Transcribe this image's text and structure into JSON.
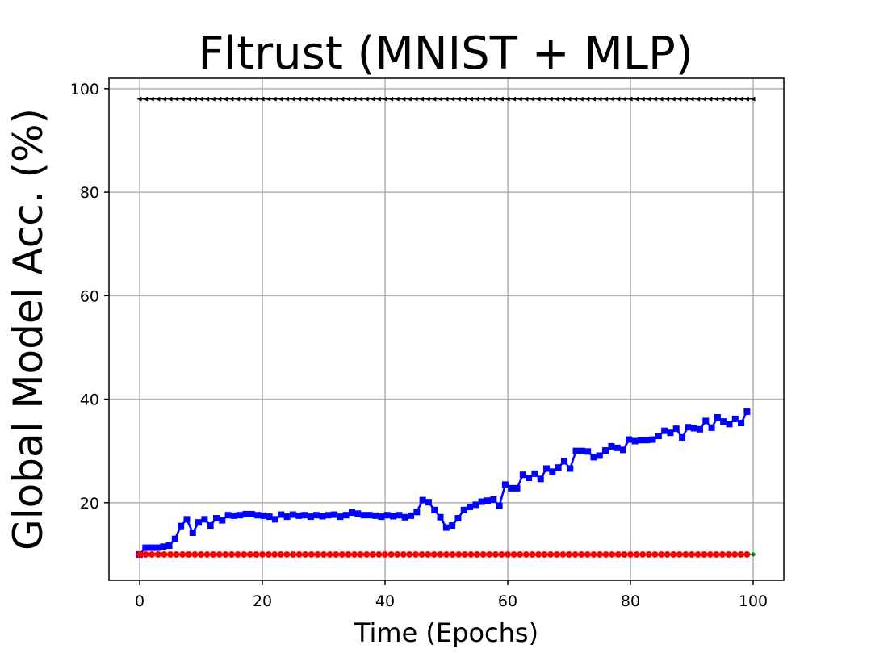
{
  "chart_data": {
    "type": "line",
    "title": "Fltrust (MNIST + MLP)",
    "xlabel": "Time (Epochs)",
    "ylabel": "Global Model Acc. (%)",
    "xlim": [
      -5,
      105
    ],
    "ylim": [
      5,
      102
    ],
    "xticks": [
      0,
      20,
      40,
      60,
      80,
      100
    ],
    "yticks": [
      20,
      40,
      60,
      80,
      100
    ],
    "grid": true,
    "legend": "none",
    "series": [
      {
        "color": "#000000",
        "marker": "triangle-left",
        "x_start": 0,
        "x_end": 100,
        "values": [
          98,
          98,
          98,
          98,
          98,
          98,
          98,
          98,
          98,
          98,
          98,
          98,
          98,
          98,
          98,
          98,
          98,
          98,
          98,
          98,
          98,
          98,
          98,
          98,
          98,
          98,
          98,
          98,
          98,
          98,
          98,
          98,
          98,
          98,
          98,
          98,
          98,
          98,
          98,
          98,
          98,
          98,
          98,
          98,
          98,
          98,
          98,
          98,
          98,
          98,
          98,
          98,
          98,
          98,
          98,
          98,
          98,
          98,
          98,
          98,
          98,
          98,
          98,
          98,
          98,
          98,
          98,
          98,
          98,
          98,
          98,
          98,
          98,
          98,
          98,
          98,
          98,
          98,
          98,
          98,
          98,
          98,
          98,
          98,
          98,
          98,
          98,
          98,
          98,
          98,
          98,
          98,
          98,
          98,
          98,
          98,
          98,
          98,
          98,
          98,
          98
        ]
      },
      {
        "color": "#0000ff",
        "marker": "square",
        "x_start": 0,
        "x_end": 99,
        "values": [
          10,
          11.3,
          11.3,
          11.3,
          11.5,
          11.7,
          13,
          15.5,
          16.8,
          14.2,
          16.2,
          16.8,
          15.6,
          17,
          16.6,
          17.6,
          17.5,
          17.6,
          17.8,
          17.8,
          17.6,
          17.5,
          17.3,
          16.8,
          17.7,
          17.3,
          17.7,
          17.5,
          17.6,
          17.3,
          17.6,
          17.4,
          17.6,
          17.7,
          17.3,
          17.6,
          18.1,
          17.9,
          17.6,
          17.6,
          17.5,
          17.3,
          17.6,
          17.4,
          17.6,
          17.2,
          17.5,
          18.2,
          20.5,
          20.1,
          18.6,
          17.2,
          15.2,
          15.6,
          17,
          18.6,
          19.2,
          19.6,
          20.2,
          20.4,
          20.6,
          19.4,
          23.5,
          22.8,
          22.8,
          25.4,
          24.8,
          25.6,
          24.6,
          26.6,
          26,
          26.8,
          28,
          26.6,
          30,
          30,
          29.9,
          28.8,
          29.1,
          30.1,
          30.9,
          30.6,
          30.2,
          32.2,
          31.9,
          32.1,
          32.1,
          32.2,
          32.9,
          33.9,
          33.5,
          34.3,
          32.6,
          34.6,
          34.4,
          34.2,
          35.8,
          34.5,
          36.5,
          35.7,
          35.2,
          36.2,
          35.4,
          37.6
        ]
      },
      {
        "color": "#008000",
        "marker": "dot",
        "x_start": 0,
        "x_end": 100,
        "values": [
          10,
          10,
          10,
          10,
          10,
          10,
          10,
          10,
          10,
          10,
          10,
          10,
          10,
          10,
          10,
          10,
          10,
          10,
          10,
          10,
          10,
          10,
          10,
          10,
          10,
          10,
          10,
          10,
          10,
          10,
          10,
          10,
          10,
          10,
          10,
          10,
          10,
          10,
          10,
          10,
          10,
          10,
          10,
          10,
          10,
          10,
          10,
          10,
          10,
          10,
          10,
          10,
          10,
          10,
          10,
          10,
          10,
          10,
          10,
          10,
          10,
          10,
          10,
          10,
          10,
          10,
          10,
          10,
          10,
          10,
          10,
          10,
          10,
          10,
          10,
          10,
          10,
          10,
          10,
          10,
          10,
          10,
          10,
          10,
          10,
          10,
          10,
          10,
          10,
          10,
          10,
          10,
          10,
          10,
          10,
          10,
          10,
          10,
          10,
          10,
          10
        ]
      },
      {
        "color": "#ff0000",
        "marker": "circle",
        "x_start": 0,
        "x_end": 99,
        "values": [
          10,
          10,
          10,
          10,
          10,
          10,
          10,
          10,
          10,
          10,
          10,
          10,
          10,
          10,
          10,
          10,
          10,
          10,
          10,
          10,
          10,
          10,
          10,
          10,
          10,
          10,
          10,
          10,
          10,
          10,
          10,
          10,
          10,
          10,
          10,
          10,
          10,
          10,
          10,
          10,
          10,
          10,
          10,
          10,
          10,
          10,
          10,
          10,
          10,
          10,
          10,
          10,
          10,
          10,
          10,
          10,
          10,
          10,
          10,
          10,
          10,
          10,
          10,
          10,
          10,
          10,
          10,
          10,
          10,
          10,
          10,
          10,
          10,
          10,
          10,
          10,
          10,
          10,
          10,
          10,
          10,
          10,
          10,
          10,
          10,
          10,
          10,
          10,
          10,
          10,
          10,
          10,
          10,
          10,
          10,
          10,
          10,
          10,
          10,
          10
        ]
      }
    ]
  }
}
